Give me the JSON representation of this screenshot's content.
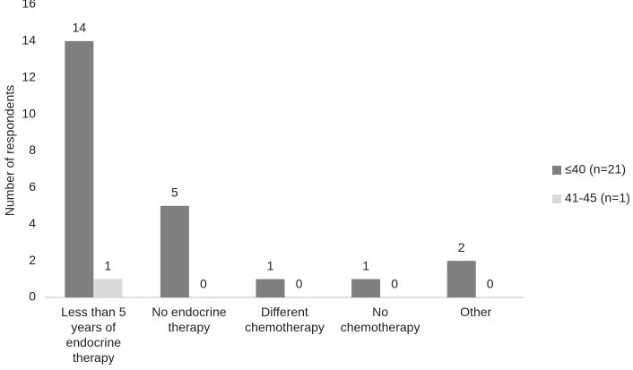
{
  "chart_data": {
    "type": "bar",
    "y_label": "Number of respondents",
    "categories": [
      "Less than 5\nyears of\nendocrine\ntherapy",
      "No endocrine\ntherapy",
      "Different\nchemotherapy",
      "No\nchemotherapy",
      "Other"
    ],
    "series": [
      {
        "name": "≤40 (n=21)",
        "color": "#7f7f7f",
        "values": [
          14,
          5,
          1,
          1,
          2
        ]
      },
      {
        "name": "41-45 (n=1)",
        "color": "#d9d9d9",
        "values": [
          1,
          0,
          0,
          0,
          0
        ]
      }
    ],
    "ylim": [
      0,
      16
    ],
    "yticks": [
      0,
      2,
      4,
      6,
      8,
      10,
      12,
      14,
      16
    ],
    "grid": false,
    "legend": "right"
  }
}
